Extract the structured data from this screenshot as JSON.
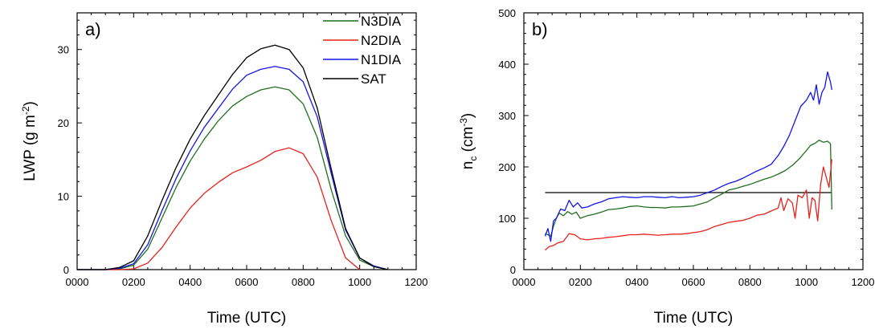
{
  "colors": {
    "N3DIA": "#1f6e1f",
    "N2DIA": "#e8211c",
    "N1DIA": "#1414e6",
    "SAT": "#000000"
  },
  "chart_data": [
    {
      "type": "line",
      "panel_label": "a)",
      "xlabel": "Time (UTC)",
      "ylabel": {
        "base": "LWP (g m",
        "sup": "-2",
        "end": ")"
      },
      "xlim": [
        0,
        1200
      ],
      "ylim": [
        0,
        35
      ],
      "xticks": [
        0,
        200,
        400,
        600,
        800,
        1000,
        1200
      ],
      "xtick_labels": [
        "0000",
        "0200",
        "0400",
        "0600",
        "0800",
        "1000",
        "1200"
      ],
      "yticks": [
        0,
        10,
        20,
        30
      ],
      "ytick_labels": [
        "0",
        "10",
        "20",
        "30"
      ],
      "legend": {
        "placement": "top-right",
        "entries": [
          "N3DIA",
          "N2DIA",
          "N1DIA",
          "SAT"
        ]
      },
      "series": [
        {
          "name": "N3DIA",
          "color": "#1f6e1f",
          "x": [
            0,
            100,
            150,
            200,
            250,
            300,
            350,
            400,
            450,
            500,
            550,
            600,
            650,
            700,
            750,
            800,
            850,
            900,
            950,
            1000,
            1050,
            1100
          ],
          "y": [
            0,
            0,
            0.1,
            0.6,
            2.8,
            7.0,
            11.2,
            14.8,
            17.8,
            20.3,
            22.3,
            23.6,
            24.5,
            24.9,
            24.5,
            22.6,
            18.0,
            10.8,
            4.6,
            1.3,
            0.4,
            0
          ]
        },
        {
          "name": "N2DIA",
          "color": "#e8211c",
          "x": [
            0,
            150,
            200,
            250,
            300,
            350,
            400,
            450,
            500,
            550,
            600,
            650,
            700,
            750,
            800,
            850,
            900,
            950,
            1000
          ],
          "y": [
            0,
            0,
            0.1,
            0.9,
            3.0,
            5.8,
            8.4,
            10.4,
            11.9,
            13.2,
            14.0,
            14.9,
            16.1,
            16.6,
            15.8,
            12.6,
            6.6,
            1.6,
            0
          ]
        },
        {
          "name": "N1DIA",
          "color": "#1414e6",
          "x": [
            0,
            100,
            150,
            200,
            250,
            300,
            350,
            400,
            450,
            500,
            550,
            600,
            650,
            700,
            750,
            800,
            850,
            900,
            950,
            1000,
            1050,
            1100
          ],
          "y": [
            0,
            0,
            0.2,
            0.8,
            3.4,
            8.0,
            12.4,
            16.2,
            19.4,
            22.0,
            24.6,
            26.5,
            27.3,
            27.7,
            27.3,
            25.6,
            20.8,
            13.0,
            5.4,
            1.6,
            0.5,
            0
          ]
        },
        {
          "name": "SAT",
          "color": "#000000",
          "x": [
            0,
            100,
            150,
            200,
            250,
            300,
            350,
            400,
            450,
            500,
            550,
            600,
            650,
            700,
            750,
            800,
            850,
            900,
            950,
            1000,
            1050,
            1100
          ],
          "y": [
            0,
            0,
            0.3,
            1.2,
            4.6,
            9.4,
            13.9,
            17.8,
            21.0,
            23.8,
            26.6,
            28.9,
            30.1,
            30.6,
            30.0,
            27.5,
            22.0,
            13.6,
            5.6,
            1.6,
            0.4,
            0
          ]
        }
      ]
    },
    {
      "type": "line",
      "panel_label": "b)",
      "xlabel": "Time (UTC)",
      "ylabel": {
        "base": "n",
        "sub": "c",
        "mid": " (cm",
        "sup": "-3",
        "end": ")"
      },
      "xlim": [
        0,
        1200
      ],
      "ylim": [
        0,
        500
      ],
      "xticks": [
        0,
        200,
        400,
        600,
        800,
        1000,
        1200
      ],
      "xtick_labels": [
        "0000",
        "0200",
        "0400",
        "0600",
        "0800",
        "1000",
        "1200"
      ],
      "yticks": [
        0,
        100,
        200,
        300,
        400,
        500
      ],
      "ytick_labels": [
        "0",
        "100",
        "200",
        "300",
        "400",
        "500"
      ],
      "series": [
        {
          "name": "SAT",
          "color": "#000000",
          "x": [
            75,
            1090
          ],
          "y": [
            150,
            150
          ]
        },
        {
          "name": "N3DIA",
          "color": "#1f6e1f",
          "x": [
            75,
            85,
            95,
            105,
            115,
            125,
            140,
            155,
            170,
            185,
            200,
            225,
            250,
            275,
            300,
            325,
            350,
            375,
            400,
            425,
            450,
            475,
            500,
            525,
            550,
            575,
            600,
            625,
            650,
            675,
            700,
            725,
            750,
            775,
            800,
            825,
            850,
            875,
            900,
            925,
            950,
            975,
            1000,
            1015,
            1030,
            1045,
            1060,
            1075,
            1085,
            1090
          ],
          "y": [
            70,
            68,
            65,
            85,
            100,
            110,
            105,
            113,
            108,
            112,
            100,
            105,
            108,
            112,
            117,
            118,
            120,
            123,
            124,
            122,
            121,
            121,
            120,
            122,
            122,
            123,
            124,
            128,
            132,
            140,
            147,
            155,
            158,
            162,
            166,
            171,
            176,
            180,
            186,
            193,
            203,
            216,
            232,
            242,
            246,
            252,
            248,
            250,
            245,
            117
          ]
        },
        {
          "name": "N2DIA",
          "color": "#e8211c",
          "x": [
            75,
            90,
            105,
            120,
            140,
            160,
            180,
            200,
            225,
            250,
            275,
            300,
            325,
            350,
            375,
            400,
            425,
            450,
            475,
            500,
            525,
            550,
            575,
            600,
            625,
            650,
            675,
            700,
            725,
            750,
            775,
            800,
            825,
            850,
            875,
            900,
            910,
            920,
            935,
            950,
            960,
            970,
            985,
            1000,
            1010,
            1020,
            1030,
            1040,
            1050,
            1060,
            1070,
            1080,
            1090
          ],
          "y": [
            38,
            45,
            47,
            52,
            55,
            70,
            68,
            60,
            58,
            60,
            61,
            63,
            64,
            66,
            68,
            68,
            69,
            68,
            67,
            68,
            69,
            69,
            70,
            72,
            74,
            78,
            84,
            88,
            92,
            94,
            96,
            100,
            106,
            108,
            114,
            120,
            140,
            115,
            138,
            130,
            100,
            145,
            140,
            155,
            100,
            140,
            135,
            95,
            165,
            200,
            180,
            160,
            215
          ]
        },
        {
          "name": "N1DIA",
          "color": "#1414e6",
          "x": [
            75,
            85,
            95,
            105,
            115,
            130,
            145,
            160,
            175,
            190,
            205,
            225,
            250,
            275,
            300,
            325,
            350,
            375,
            400,
            425,
            450,
            475,
            500,
            525,
            550,
            575,
            600,
            625,
            650,
            675,
            700,
            725,
            750,
            775,
            800,
            825,
            850,
            875,
            900,
            920,
            940,
            960,
            980,
            1000,
            1015,
            1025,
            1035,
            1045,
            1055,
            1065,
            1075,
            1085,
            1090
          ],
          "y": [
            65,
            80,
            55,
            95,
            100,
            118,
            115,
            135,
            122,
            130,
            120,
            122,
            128,
            132,
            138,
            140,
            142,
            141,
            140,
            142,
            142,
            141,
            140,
            142,
            140,
            141,
            142,
            145,
            150,
            155,
            162,
            168,
            172,
            178,
            185,
            192,
            198,
            205,
            222,
            240,
            262,
            290,
            318,
            330,
            345,
            330,
            360,
            322,
            345,
            355,
            385,
            365,
            350
          ]
        }
      ]
    }
  ]
}
